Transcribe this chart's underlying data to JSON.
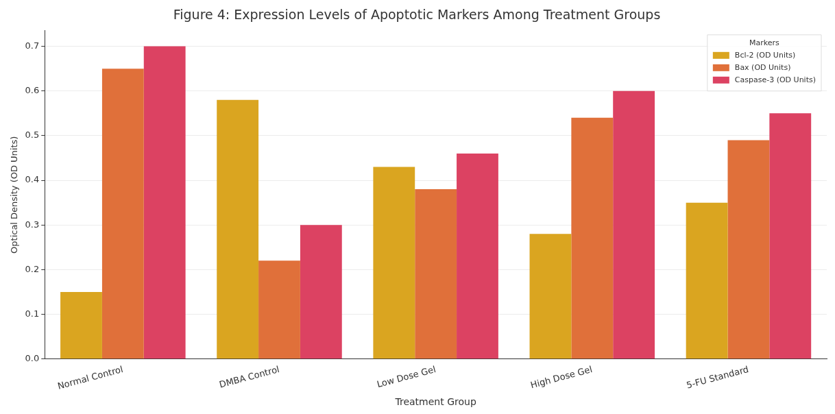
{
  "chart_data": {
    "type": "bar",
    "title": "Figure 4: Expression Levels of Apoptotic Markers Among Treatment Groups",
    "xlabel": "Treatment Group",
    "ylabel": "Optical Density (OD Units)",
    "legend_title": "Markers",
    "categories": [
      "Normal Control",
      "DMBA Control",
      "Low Dose Gel",
      "High Dose Gel",
      "5-FU Standard"
    ],
    "series": [
      {
        "name": "Bcl-2 (OD Units)",
        "color": "#daa520",
        "values": [
          0.15,
          0.58,
          0.43,
          0.28,
          0.35
        ]
      },
      {
        "name": "Bax (OD Units)",
        "color": "#e0703a",
        "values": [
          0.65,
          0.22,
          0.38,
          0.54,
          0.49
        ]
      },
      {
        "name": "Caspase-3 (OD Units)",
        "color": "#dc4262",
        "values": [
          0.7,
          0.3,
          0.46,
          0.6,
          0.55
        ]
      }
    ],
    "ylim": [
      0,
      0.735
    ],
    "yticks": [
      {
        "value": 0,
        "label": "0.0"
      },
      0.1,
      0.2,
      0.3,
      0.4,
      0.5,
      0.6,
      0.7
    ],
    "grid": "y",
    "legend": "top right"
  }
}
